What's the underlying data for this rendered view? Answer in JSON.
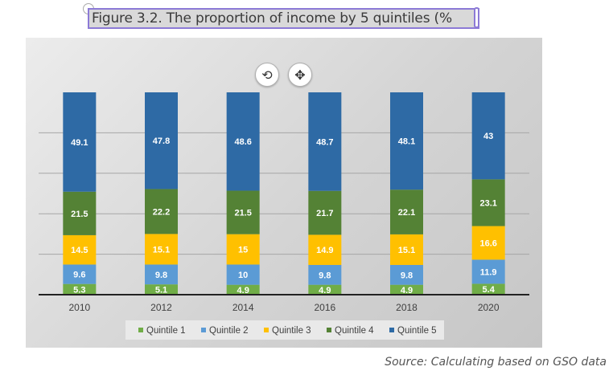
{
  "caption": "Figure 3.2.  The proportion of income by 5 quintiles (%",
  "toolbar": {
    "refresh_icon": "refresh-icon",
    "move_icon": "move-icon"
  },
  "source": "Source: Calculating based on GSO data",
  "chart_data": {
    "type": "bar",
    "stacked": true,
    "categories": [
      "2010",
      "2012",
      "2014",
      "2016",
      "2018",
      "2020"
    ],
    "series": [
      {
        "name": "Quintile 1",
        "color": "#70ad47",
        "values": [
          5.3,
          5.1,
          4.9,
          4.9,
          4.9,
          5.4
        ]
      },
      {
        "name": "Quintile 2",
        "color": "#5b9bd5",
        "values": [
          9.6,
          9.8,
          10,
          9.8,
          9.8,
          11.9
        ]
      },
      {
        "name": "Quintile 3",
        "color": "#ffc000",
        "values": [
          14.5,
          15.1,
          15,
          14.9,
          15.1,
          16.6
        ]
      },
      {
        "name": "Quintile 4",
        "color": "#548235",
        "values": [
          21.5,
          22.2,
          21.5,
          21.7,
          22.1,
          23.1
        ]
      },
      {
        "name": "Quintile 5",
        "color": "#2e6aa5",
        "values": [
          49.1,
          47.8,
          48.6,
          48.7,
          48.1,
          43
        ]
      }
    ],
    "ylim": [
      0,
      100
    ],
    "grid": true,
    "legend": "bottom",
    "data_labels": true
  }
}
